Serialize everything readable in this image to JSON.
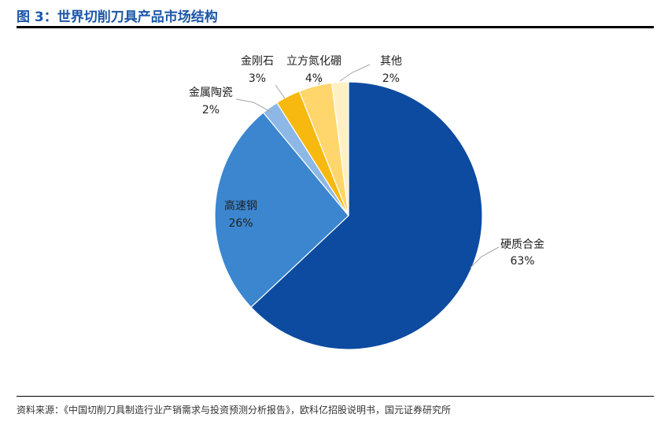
{
  "header": {
    "title": "图 3：世界切削刀具产品市场结构"
  },
  "footer": {
    "source": "资料来源：《中国切削刀具制造行业产销需求与投资预测分析报告》，欧科亿招股说明书，国元证券研究所"
  },
  "chart_data": {
    "type": "pie",
    "title": "",
    "slices": [
      {
        "name": "硬质合金",
        "value": 63,
        "label": "63%",
        "color": "#0d4ba1"
      },
      {
        "name": "高速钢",
        "value": 26,
        "label": "26%",
        "color": "#3b86cf"
      },
      {
        "name": "金属陶瓷",
        "value": 2,
        "label": "2%",
        "color": "#8db8e6"
      },
      {
        "name": "金刚石",
        "value": 3,
        "label": "3%",
        "color": "#f7b80f"
      },
      {
        "name": "立方氮化硼",
        "value": 4,
        "label": "4%",
        "color": "#ffd66b"
      },
      {
        "name": "其他",
        "value": 2,
        "label": "2%",
        "color": "#fff0c4"
      }
    ],
    "start_angle_deg": 0,
    "direction": "clockwise"
  }
}
